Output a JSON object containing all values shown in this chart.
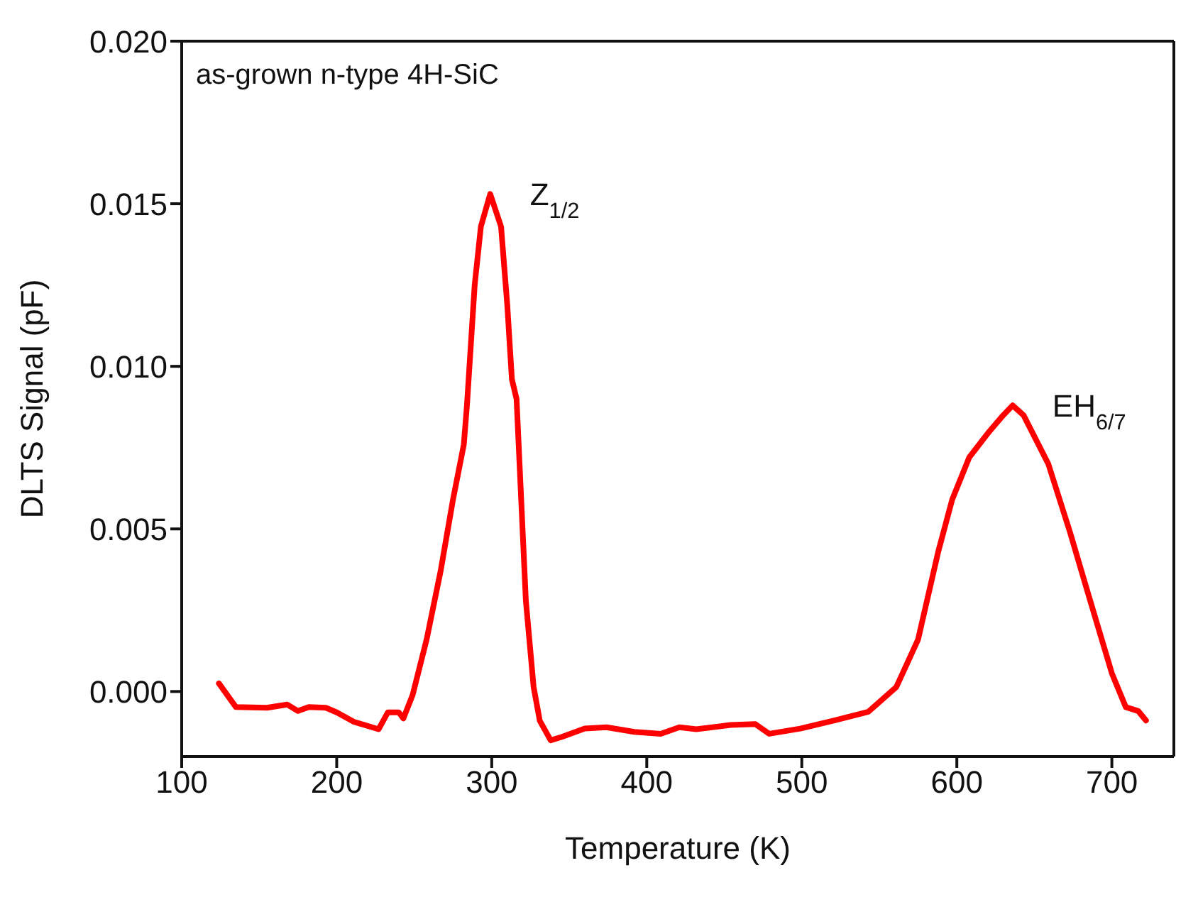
{
  "chart_data": {
    "type": "line",
    "xlabel": "Temperature (K)",
    "ylabel": "DLTS Signal (pF)",
    "annotations": [
      "as-grown n-type 4H-SiC",
      {
        "text": "Z$_{1/2}$",
        "x": 299,
        "y": 0.0153
      },
      {
        "text": "EH$_{6/7}$",
        "x": 636,
        "y": 0.0088
      }
    ],
    "xlim": [
      100,
      740
    ],
    "xticks": [
      100,
      200,
      300,
      400,
      500,
      600,
      700
    ],
    "ylim": [
      -0.002,
      0.02
    ],
    "yticks": [
      {
        "value": 0,
        "label": "0.000"
      },
      {
        "value": 0.005,
        "label": "0.005"
      },
      {
        "value": 0.01,
        "label": "0.010"
      },
      {
        "value": 0.015,
        "label": "0.015"
      },
      {
        "value": 0.02,
        "label": "0.020"
      }
    ],
    "grid": false,
    "marker": "none",
    "line_style": "solid",
    "series": [
      {
        "color": "#ff0000",
        "x": [
          124,
          135,
          155,
          168,
          175,
          182,
          193,
          200,
          211,
          227,
          233,
          240,
          243,
          249,
          258,
          267,
          275,
          282,
          284,
          289,
          293,
          299,
          306,
          310,
          313,
          316,
          319,
          322,
          327,
          331,
          338,
          345,
          360,
          374,
          392,
          409,
          421,
          432,
          454,
          470,
          479,
          499,
          521,
          543,
          561,
          575,
          588,
          597,
          608,
          621,
          630,
          636,
          643,
          659,
          673,
          686,
          700,
          709,
          717,
          722
        ],
        "values": [
          0.00025,
          -0.00048,
          -0.0005,
          -0.0004,
          -0.0006,
          -0.00048,
          -0.0005,
          -0.00064,
          -0.00093,
          -0.00116,
          -0.00064,
          -0.00064,
          -0.00083,
          -0.0001,
          0.0016,
          0.0037,
          0.0059,
          0.0076,
          0.0088,
          0.0125,
          0.0143,
          0.0153,
          0.0143,
          0.0119,
          0.0096,
          0.009,
          0.0059,
          0.0028,
          0.00014,
          -0.0009,
          -0.0015,
          -0.0014,
          -0.00114,
          -0.0011,
          -0.00124,
          -0.0013,
          -0.0011,
          -0.00116,
          -0.00103,
          -0.001,
          -0.0013,
          -0.00114,
          -0.00089,
          -0.00062,
          0.00014,
          0.0016,
          0.0043,
          0.0059,
          0.0072,
          0.008,
          0.0085,
          0.0088,
          0.0085,
          0.007,
          0.0049,
          0.0028,
          0.00056,
          -0.00048,
          -0.0006,
          -0.00089
        ]
      }
    ]
  }
}
